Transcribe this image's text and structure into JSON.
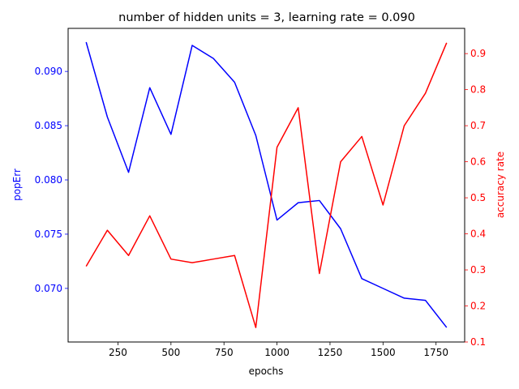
{
  "chart_data": {
    "type": "line",
    "title": "number of hidden units = 3, learning rate = 0.090",
    "xlabel": "epochs",
    "ylabel_left": "popErr",
    "ylabel_right": "accuracy rate",
    "xlim": [
      15,
      1885
    ],
    "ylim_left": [
      0.06506,
      0.09397
    ],
    "ylim_right": [
      0.1,
      0.97
    ],
    "x_ticks": [
      250,
      500,
      750,
      1000,
      1250,
      1500,
      1750
    ],
    "x_tick_labels": [
      "250",
      "500",
      "750",
      "1000",
      "1250",
      "1500",
      "1750"
    ],
    "y_left_ticks": [
      0.07,
      0.075,
      0.08,
      0.085,
      0.09
    ],
    "y_left_tick_labels": [
      "0.070",
      "0.075",
      "0.080",
      "0.085",
      "0.090"
    ],
    "y_right_ticks": [
      0.1,
      0.2,
      0.3,
      0.4,
      0.5,
      0.6,
      0.7,
      0.8,
      0.9
    ],
    "y_right_tick_labels": [
      "0.1",
      "0.2",
      "0.3",
      "0.4",
      "0.5",
      "0.6",
      "0.7",
      "0.8",
      "0.9"
    ],
    "grid": false,
    "x": [
      100,
      200,
      300,
      400,
      500,
      600,
      700,
      800,
      900,
      1000,
      1100,
      1200,
      1300,
      1400,
      1500,
      1600,
      1700,
      1800
    ],
    "series": [
      {
        "axis": "left",
        "color": "#0000ff",
        "values": [
          0.0927,
          0.0858,
          0.0807,
          0.0885,
          0.0842,
          0.0924,
          0.0912,
          0.089,
          0.0841,
          0.0763,
          0.0779,
          0.0781,
          0.0755,
          0.0709,
          0.07,
          0.0691,
          0.0689,
          0.0664
        ]
      },
      {
        "axis": "right",
        "color": "#ff0000",
        "values": [
          0.31,
          0.41,
          0.34,
          0.45,
          0.33,
          0.32,
          0.33,
          0.34,
          0.14,
          0.64,
          0.75,
          0.29,
          0.6,
          0.67,
          0.48,
          0.7,
          0.79,
          0.93
        ]
      }
    ]
  }
}
